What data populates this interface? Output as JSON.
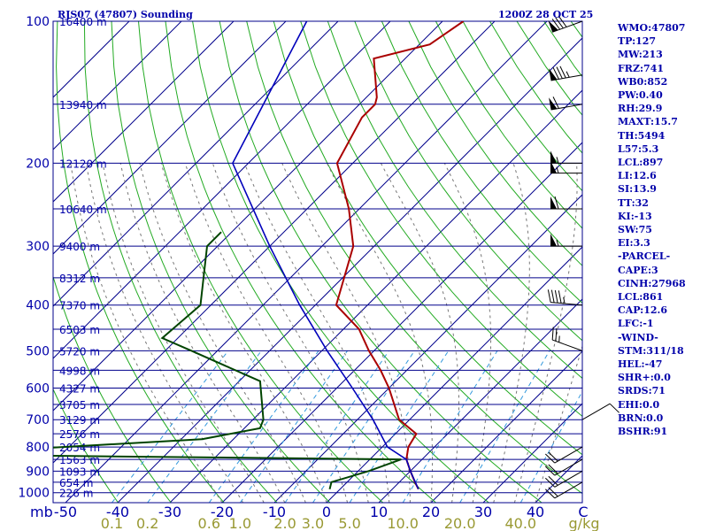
{
  "header": {
    "title": "RJS07 (47807) Sounding",
    "time": "1200Z 28 OCT 25"
  },
  "indices": [
    "WMO:47807",
    "TP:127",
    "MW:213",
    "FRZ:741",
    "WB0:852",
    "PW:0.40",
    "RH:29.9",
    "MAXT:15.7",
    "TH:5494",
    "L57:5.3",
    "LCL:897",
    "LI:12.6",
    "SI:13.9",
    "TT:32",
    "KI:-13",
    "SW:75",
    "EI:3.3",
    "-PARCEL-",
    "CAPE:3",
    "CINH:27968",
    "LCL:861",
    "CAP:12.6",
    "LFC:-1",
    "-WIND-",
    "STM:311/18",
    "HEL:-47",
    "SHR+:0.0",
    "SRDS:71",
    "EHI:0.0",
    "BRN:0.0",
    "BSHR:91"
  ],
  "colors": {
    "isobar": "#00008b",
    "isotherm": "#00008b",
    "dry_adiabat": "#22aa22",
    "moist_adiabat": "#777777",
    "mixing_ratio": "#3399dd",
    "temperature": "#aa0000",
    "dewpoint": "#004400",
    "parcel": "#0000bb",
    "axis_text": "#0000aa",
    "mixing_text": "#999933"
  },
  "chart_data": {
    "type": "skew-t",
    "ylabel": "mb",
    "xlabel": "C",
    "pressure_levels": [
      100,
      200,
      300,
      400,
      500,
      600,
      700,
      800,
      900,
      1000
    ],
    "mandatory_levels": [
      {
        "p": 100,
        "h": "16400 m"
      },
      {
        "p": 150,
        "h": "13940 m"
      },
      {
        "p": 200,
        "h": "12120 m"
      },
      {
        "p": 250,
        "h": "10640 m"
      },
      {
        "p": 300,
        "h": "9400 m"
      },
      {
        "p": 350,
        "h": "8312 m"
      },
      {
        "p": 400,
        "h": "7370 m"
      },
      {
        "p": 450,
        "h": "6503 m"
      },
      {
        "p": 500,
        "h": "5720 m"
      },
      {
        "p": 550,
        "h": "4998 m"
      },
      {
        "p": 600,
        "h": "4327 m"
      },
      {
        "p": 650,
        "h": "3705 m"
      },
      {
        "p": 700,
        "h": "3129 m"
      },
      {
        "p": 750,
        "h": "2576 m"
      },
      {
        "p": 800,
        "h": "2054 m"
      },
      {
        "p": 850,
        "h": "1563 m"
      },
      {
        "p": 900,
        "h": "1093 m"
      },
      {
        "p": 950,
        "h": "654 m"
      },
      {
        "p": 1000,
        "h": "226 m"
      }
    ],
    "temp_ticks": [
      -50,
      -40,
      -30,
      -20,
      -10,
      0,
      10,
      20,
      30,
      40
    ],
    "mixing_ratios": [
      "0.1",
      "0.2",
      "0.6",
      "1.0",
      "2.0",
      "3.0",
      "5.0",
      "10.0",
      "20.0",
      "40.0"
    ],
    "mixing_unit": "g/kg",
    "series": [
      {
        "key": "temperature",
        "points": [
          [
            100,
            -66
          ],
          [
            112,
            -68
          ],
          [
            120,
            -76
          ],
          [
            145,
            -68
          ],
          [
            150,
            -67
          ],
          [
            160,
            -67
          ],
          [
            200,
            -63
          ],
          [
            250,
            -52
          ],
          [
            300,
            -44
          ],
          [
            400,
            -36
          ],
          [
            450,
            -27
          ],
          [
            500,
            -21
          ],
          [
            550,
            -15
          ],
          [
            600,
            -10
          ],
          [
            700,
            -2
          ],
          [
            750,
            4
          ],
          [
            800,
            5
          ],
          [
            850,
            7
          ],
          [
            900,
            10
          ],
          [
            950,
            13
          ],
          [
            983,
            15
          ]
        ]
      },
      {
        "key": "dewpoint",
        "points": [
          [
            280,
            -72
          ],
          [
            300,
            -72
          ],
          [
            400,
            -62
          ],
          [
            470,
            -63
          ],
          [
            500,
            -55
          ],
          [
            580,
            -36
          ],
          [
            700,
            -28
          ],
          [
            730,
            -27
          ],
          [
            770,
            -36
          ],
          [
            830,
            -85
          ],
          [
            850,
            6
          ],
          [
            900,
            2
          ],
          [
            950,
            -3
          ],
          [
            983,
            -2
          ]
        ]
      },
      {
        "key": "parcel",
        "points": [
          [
            983,
            15
          ],
          [
            900,
            10
          ],
          [
            850,
            7
          ],
          [
            800,
            1
          ],
          [
            700,
            -7
          ],
          [
            600,
            -17
          ],
          [
            500,
            -29
          ],
          [
            400,
            -43
          ],
          [
            300,
            -60
          ],
          [
            200,
            -83
          ],
          [
            100,
            -96
          ]
        ]
      }
    ],
    "wind_barbs": [
      {
        "p": 100,
        "dir": 250,
        "spd": 80
      },
      {
        "p": 130,
        "dir": 260,
        "spd": 85
      },
      {
        "p": 150,
        "dir": 260,
        "spd": 60
      },
      {
        "p": 200,
        "dir": 270,
        "spd": 55
      },
      {
        "p": 210,
        "dir": 270,
        "spd": 55
      },
      {
        "p": 250,
        "dir": 270,
        "spd": 60
      },
      {
        "p": 300,
        "dir": 270,
        "spd": 55
      },
      {
        "p": 400,
        "dir": 275,
        "spd": 45
      },
      {
        "p": 500,
        "dir": 290,
        "spd": 25
      },
      {
        "p": 700,
        "dir": 60,
        "spd": 10
      },
      {
        "p": 800,
        "dir": 240,
        "spd": 20
      },
      {
        "p": 850,
        "dir": 240,
        "spd": 20
      },
      {
        "p": 900,
        "dir": 240,
        "spd": 20
      },
      {
        "p": 950,
        "dir": 240,
        "spd": 20
      }
    ]
  }
}
